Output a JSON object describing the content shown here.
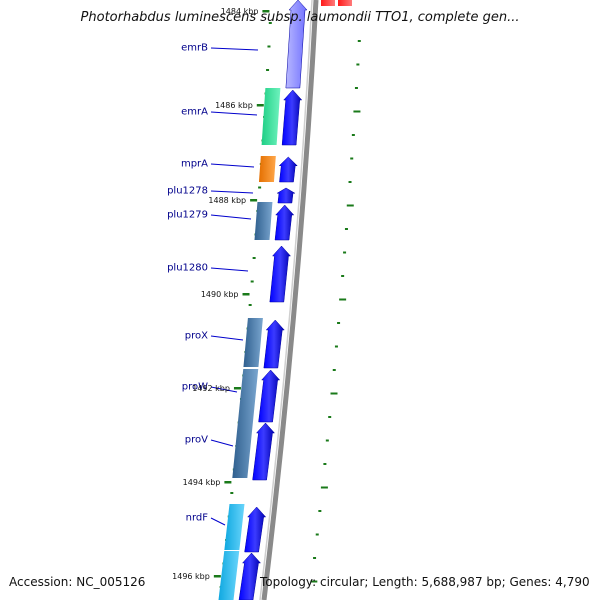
{
  "title": "Photorhabdus luminescens subsp. laumondii TTO1, complete gen...",
  "accession": "Accession: NC_005126",
  "topology": "Topology: circular; Length: 5,688,987 bp; Genes: 4,790",
  "ticks": [
    "1484 kbp",
    "1486 kbp",
    "1488 kbp",
    "1490 kbp",
    "1492 kbp",
    "1494 kbp",
    "1496 kbp"
  ],
  "genes": [
    "emrB",
    "emrA",
    "mprA",
    "plu1278",
    "plu1279",
    "plu1280",
    "proX",
    "proW",
    "proV",
    "nrdF"
  ],
  "colors": {
    "backbone": "#8a8a8a",
    "gene_arrow": "#0000ee",
    "tick_mark": "#1a7a1a",
    "label": "#00008b",
    "green_block": "#22d88e",
    "orange_block": "#ee7a00",
    "steel_block": "#3a6e9e",
    "cyan_block": "#19b0e6",
    "red_block": "#ee1111"
  }
}
